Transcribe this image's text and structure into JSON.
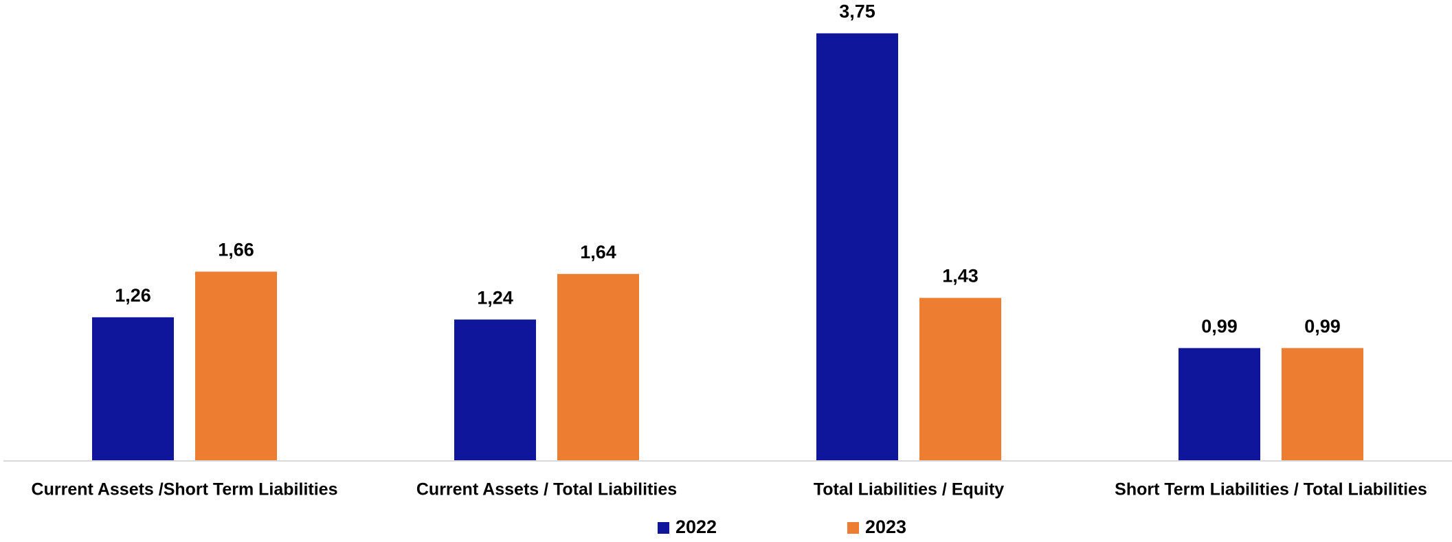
{
  "chart_data": {
    "type": "bar",
    "categories": [
      "Current Assets /Short Term Liabilities",
      "Current Assets / Total Liabilities",
      "Total Liabilities / Equity",
      "Short Term Liabilities / Total Liabilities"
    ],
    "series": [
      {
        "name": "2022",
        "color": "#10169c",
        "values": [
          1.26,
          1.24,
          3.75,
          0.99
        ],
        "value_labels": [
          "1,26",
          "1,24",
          "3,75",
          "0,99"
        ]
      },
      {
        "name": "2023",
        "color": "#ed7d31",
        "values": [
          1.66,
          1.64,
          1.43,
          0.99
        ],
        "value_labels": [
          "1,66",
          "1,64",
          "1,43",
          "0,99"
        ]
      }
    ],
    "ylim": [
      0,
      4
    ],
    "legend": "bottom"
  }
}
